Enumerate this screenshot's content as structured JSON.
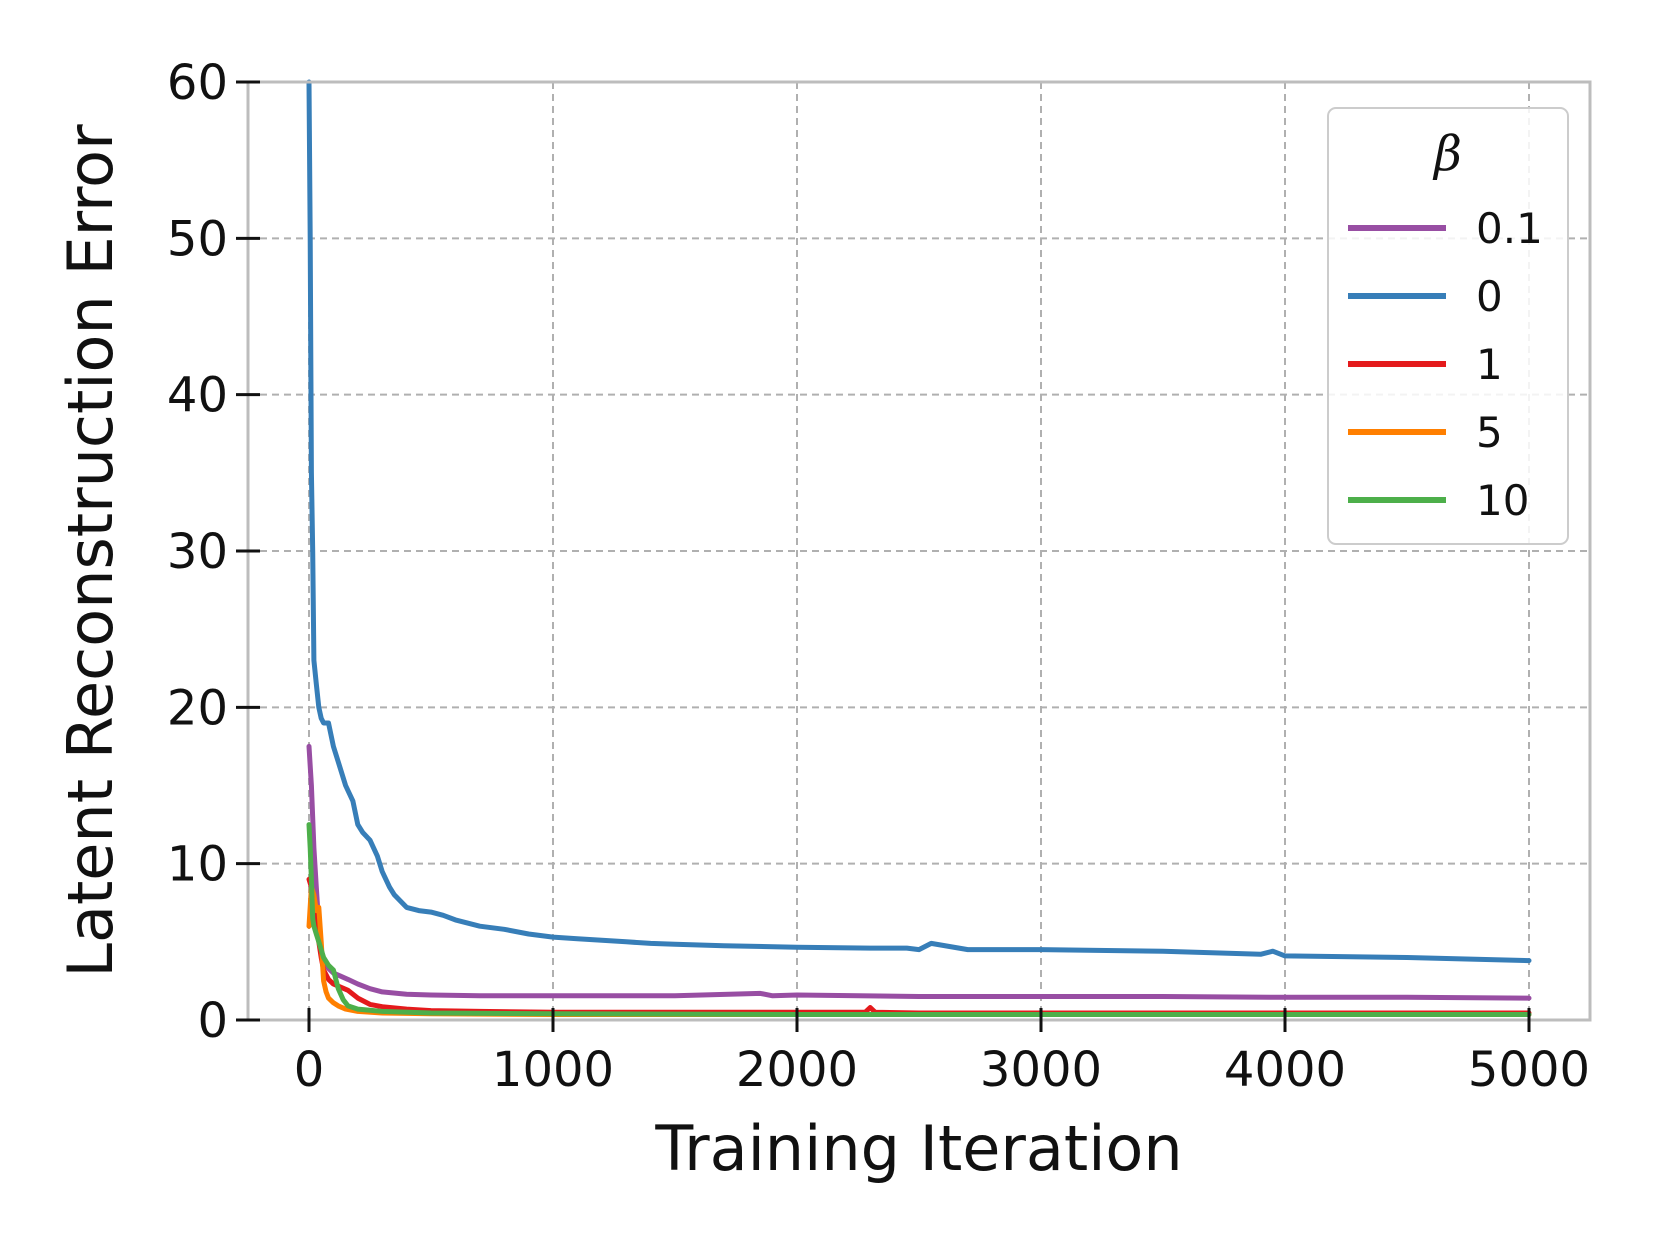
{
  "chart_data": {
    "type": "line",
    "xlabel": "Training Iteration",
    "ylabel": "Latent Reconstruction Error",
    "xlim": [
      -250,
      5250
    ],
    "ylim": [
      0,
      60
    ],
    "xticks": [
      0,
      1000,
      2000,
      3000,
      4000,
      5000
    ],
    "yticks": [
      0,
      10,
      20,
      30,
      40,
      50,
      60
    ],
    "grid": true,
    "legend": {
      "title": "β",
      "placement": "top-right"
    },
    "series": [
      {
        "name": "0.1",
        "color": "#984ea3",
        "x": [
          0,
          10,
          20,
          30,
          40,
          50,
          60,
          80,
          100,
          130,
          160,
          200,
          250,
          300,
          400,
          500,
          700,
          1000,
          1500,
          1850,
          1900,
          2000,
          2500,
          3000,
          3500,
          4000,
          4500,
          5000
        ],
        "y": [
          17.5,
          15.0,
          11.0,
          8.5,
          6.0,
          4.5,
          3.8,
          3.3,
          3.0,
          2.8,
          2.6,
          2.3,
          2.0,
          1.8,
          1.65,
          1.6,
          1.55,
          1.55,
          1.55,
          1.7,
          1.55,
          1.6,
          1.5,
          1.5,
          1.5,
          1.45,
          1.45,
          1.4
        ]
      },
      {
        "name": "0",
        "color": "#377eb8",
        "x": [
          0,
          5,
          10,
          15,
          20,
          30,
          40,
          50,
          60,
          80,
          100,
          120,
          150,
          180,
          200,
          220,
          250,
          280,
          300,
          330,
          350,
          400,
          450,
          500,
          550,
          600,
          650,
          700,
          800,
          900,
          1000,
          1100,
          1200,
          1300,
          1400,
          1500,
          1700,
          2000,
          2300,
          2450,
          2500,
          2550,
          2700,
          3000,
          3500,
          3900,
          3950,
          4000,
          4500,
          5000
        ],
        "y": [
          60,
          50,
          35,
          30,
          23,
          21.5,
          20,
          19.3,
          19,
          19,
          17.5,
          16.5,
          15,
          14,
          12.5,
          12,
          11.5,
          10.5,
          9.5,
          8.5,
          8.0,
          7.2,
          7.0,
          6.9,
          6.7,
          6.4,
          6.2,
          6.0,
          5.8,
          5.5,
          5.3,
          5.2,
          5.1,
          5.0,
          4.9,
          4.85,
          4.75,
          4.65,
          4.6,
          4.6,
          4.5,
          4.9,
          4.5,
          4.5,
          4.4,
          4.2,
          4.4,
          4.1,
          4.0,
          3.8
        ]
      },
      {
        "name": "1",
        "color": "#e41a1c",
        "x": [
          0,
          10,
          20,
          30,
          40,
          50,
          60,
          80,
          100,
          130,
          160,
          200,
          250,
          300,
          400,
          500,
          700,
          1000,
          1500,
          2000,
          2280,
          2300,
          2320,
          2500,
          3000,
          3500,
          4000,
          4500,
          5000
        ],
        "y": [
          9.0,
          8.5,
          7.0,
          6.0,
          5.0,
          4.0,
          3.2,
          2.6,
          2.3,
          2.1,
          1.9,
          1.4,
          1.0,
          0.85,
          0.7,
          0.6,
          0.55,
          0.5,
          0.5,
          0.5,
          0.5,
          0.8,
          0.5,
          0.45,
          0.45,
          0.45,
          0.45,
          0.45,
          0.45
        ]
      },
      {
        "name": "5",
        "color": "#ff7f00",
        "x": [
          0,
          10,
          20,
          30,
          40,
          50,
          60,
          70,
          80,
          100,
          120,
          150,
          200,
          300,
          500,
          1000,
          2000,
          3000,
          4000,
          5000
        ],
        "y": [
          6.0,
          8.5,
          8.0,
          7.0,
          7.2,
          5.0,
          2.5,
          1.8,
          1.4,
          1.1,
          0.9,
          0.7,
          0.55,
          0.45,
          0.4,
          0.35,
          0.35,
          0.35,
          0.35,
          0.35
        ]
      },
      {
        "name": "10",
        "color": "#4daf4a",
        "x": [
          0,
          5,
          10,
          15,
          20,
          30,
          40,
          50,
          60,
          80,
          100,
          120,
          140,
          160,
          200,
          300,
          500,
          1000,
          2000,
          3000,
          4000,
          5000
        ],
        "y": [
          12.5,
          11.0,
          9.0,
          6.5,
          6.0,
          5.5,
          5.0,
          4.5,
          4.0,
          3.5,
          3.2,
          2.0,
          1.3,
          0.9,
          0.7,
          0.55,
          0.45,
          0.4,
          0.35,
          0.35,
          0.35,
          0.35
        ]
      }
    ]
  }
}
